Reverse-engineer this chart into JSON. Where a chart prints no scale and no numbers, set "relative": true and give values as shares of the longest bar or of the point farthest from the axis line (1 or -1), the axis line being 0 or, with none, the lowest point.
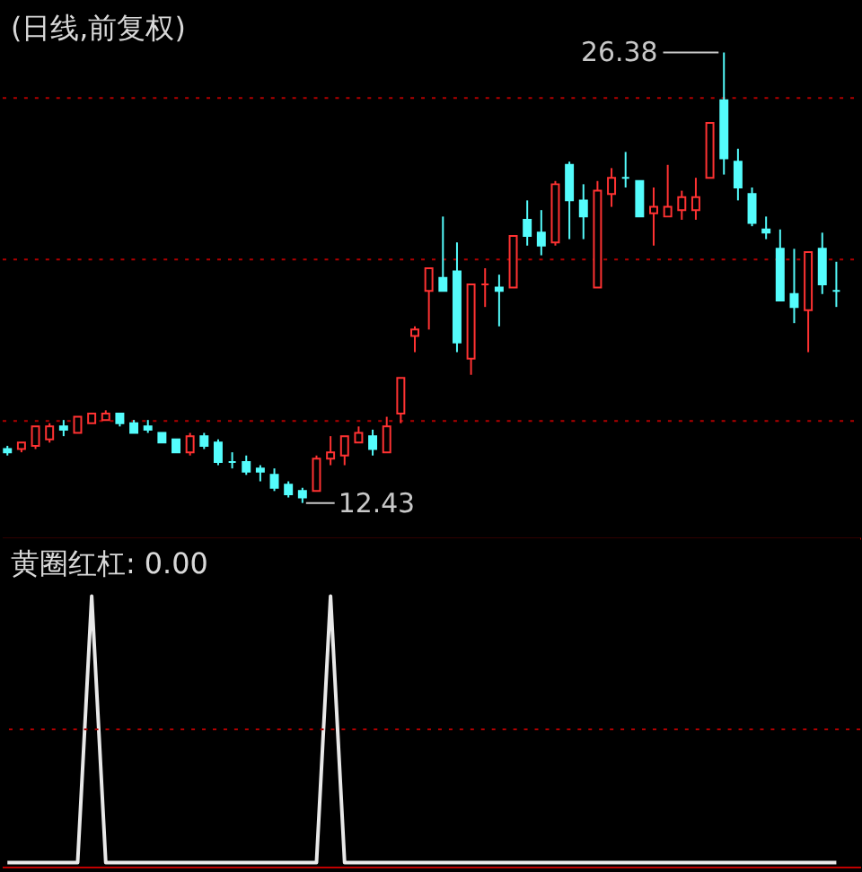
{
  "chart_data": [
    {
      "type": "candlestick",
      "title": "(日线,前复权)",
      "categories": [
        null,
        null,
        null,
        null,
        null,
        null,
        null,
        null,
        null,
        null,
        null,
        null,
        null,
        null,
        null,
        null,
        null,
        null,
        null,
        null,
        null,
        null,
        null,
        null,
        null,
        null,
        null,
        null,
        null,
        null,
        null,
        null,
        null,
        null,
        null,
        null,
        null,
        null,
        null,
        null,
        null,
        null,
        null,
        null,
        null,
        null,
        null,
        null,
        null,
        null,
        null,
        null,
        null,
        null,
        null,
        null,
        null,
        null,
        null,
        null
      ],
      "ohlc": [
        [
          14.1,
          14.2,
          13.9,
          14.0
        ],
        [
          14.1,
          14.3,
          14.0,
          14.3
        ],
        [
          14.2,
          14.8,
          14.1,
          14.8
        ],
        [
          14.4,
          14.9,
          14.3,
          14.8
        ],
        [
          14.8,
          15.0,
          14.5,
          14.7
        ],
        [
          14.6,
          15.1,
          14.6,
          15.1
        ],
        [
          14.9,
          15.2,
          14.9,
          15.2
        ],
        [
          15.0,
          15.3,
          15.0,
          15.2
        ],
        [
          15.2,
          15.2,
          14.8,
          14.9
        ],
        [
          14.9,
          15.0,
          14.6,
          14.6
        ],
        [
          14.8,
          15.0,
          14.6,
          14.7
        ],
        [
          14.6,
          14.6,
          14.3,
          14.3
        ],
        [
          14.4,
          14.4,
          14.0,
          14.0
        ],
        [
          14.0,
          14.6,
          13.9,
          14.5
        ],
        [
          14.5,
          14.6,
          14.1,
          14.2
        ],
        [
          14.3,
          14.4,
          13.6,
          13.7
        ],
        [
          13.7,
          14.0,
          13.5,
          13.7
        ],
        [
          13.7,
          13.9,
          13.3,
          13.4
        ],
        [
          13.5,
          13.6,
          13.1,
          13.4
        ],
        [
          13.3,
          13.5,
          12.8,
          12.9
        ],
        [
          13.0,
          13.1,
          12.6,
          12.7
        ],
        [
          12.8,
          12.9,
          12.43,
          12.6
        ],
        [
          12.8,
          13.9,
          12.8,
          13.8
        ],
        [
          13.8,
          14.5,
          13.6,
          14.0
        ],
        [
          13.9,
          14.5,
          13.6,
          14.5
        ],
        [
          14.3,
          14.8,
          14.3,
          14.6
        ],
        [
          14.5,
          14.7,
          13.9,
          14.1
        ],
        [
          14.0,
          15.1,
          14.0,
          14.8
        ],
        [
          15.2,
          16.3,
          14.9,
          16.3
        ],
        [
          17.6,
          17.9,
          17.1,
          17.8
        ],
        [
          19.0,
          19.7,
          17.8,
          19.7
        ],
        [
          19.4,
          21.3,
          19.0,
          19.0
        ],
        [
          19.6,
          20.5,
          17.1,
          17.4
        ],
        [
          16.9,
          19.2,
          16.4,
          19.2
        ],
        [
          19.2,
          19.7,
          18.5,
          19.2
        ],
        [
          19.1,
          19.5,
          17.9,
          19.0
        ],
        [
          19.1,
          20.7,
          19.1,
          20.7
        ],
        [
          21.2,
          21.8,
          20.4,
          20.7
        ],
        [
          20.8,
          21.5,
          20.1,
          20.4
        ],
        [
          20.5,
          22.4,
          20.4,
          22.3
        ],
        [
          22.9,
          23.0,
          20.6,
          21.8
        ],
        [
          21.8,
          22.3,
          20.6,
          21.3
        ],
        [
          19.1,
          22.4,
          19.1,
          22.1
        ],
        [
          22.0,
          22.8,
          21.6,
          22.5
        ],
        [
          22.5,
          23.3,
          22.2,
          22.5
        ],
        [
          22.4,
          22.4,
          21.3,
          21.3
        ],
        [
          21.4,
          22.2,
          20.4,
          21.6
        ],
        [
          21.3,
          22.9,
          21.3,
          21.6
        ],
        [
          21.5,
          22.1,
          21.2,
          21.9
        ],
        [
          21.5,
          22.5,
          21.2,
          21.9
        ],
        [
          22.5,
          24.2,
          22.5,
          24.2
        ],
        [
          24.9,
          26.38,
          22.6,
          23.1
        ],
        [
          23.0,
          23.4,
          21.8,
          22.2
        ],
        [
          22.0,
          22.2,
          21.0,
          21.1
        ],
        [
          20.9,
          21.3,
          20.6,
          20.8
        ],
        [
          20.3,
          20.9,
          18.7,
          18.7
        ],
        [
          18.9,
          20.3,
          18.0,
          18.5
        ],
        [
          18.4,
          20.2,
          17.1,
          20.2
        ],
        [
          20.3,
          20.8,
          18.9,
          19.2
        ],
        [
          19.0,
          19.9,
          18.5,
          19.0
        ]
      ],
      "colors": [
        "#54fcfc",
        "#ff3232",
        "#ff3232",
        "#ff3232",
        "#54fcfc",
        "#ff3232",
        "#ff3232",
        "#ff3232",
        "#54fcfc",
        "#54fcfc",
        "#54fcfc",
        "#54fcfc",
        "#54fcfc",
        "#ff3232",
        "#54fcfc",
        "#54fcfc",
        "#54fcfc",
        "#54fcfc",
        "#54fcfc",
        "#54fcfc",
        "#54fcfc",
        "#54fcfc",
        "#ff3232",
        "#ff3232",
        "#ff3232",
        "#ff3232",
        "#54fcfc",
        "#ff3232",
        "#ff3232",
        "#ff3232",
        "#ff3232",
        "#54fcfc",
        "#54fcfc",
        "#ff3232",
        "#ff3232",
        "#54fcfc",
        "#ff3232",
        "#54fcfc",
        "#54fcfc",
        "#ff3232",
        "#54fcfc",
        "#54fcfc",
        "#ff3232",
        "#ff3232",
        "#54fcfc",
        "#54fcfc",
        "#ff3232",
        "#ff3232",
        "#ff3232",
        "#ff3232",
        "#ff3232",
        "#54fcfc",
        "#54fcfc",
        "#54fcfc",
        "#54fcfc",
        "#54fcfc",
        "#54fcfc",
        "#ff3232",
        "#54fcfc",
        "#54fcfc"
      ],
      "yticks": [
        {
          "value": 15,
          "label": null
        },
        {
          "value": 20,
          "label": null
        },
        {
          "value": 25,
          "label": null
        }
      ],
      "grid": "y",
      "tick_labels": false,
      "annotations": [
        "26.38",
        "12.43"
      ]
    },
    {
      "type": "line",
      "title": "黄圈红杠: 0.00",
      "categories": [
        null,
        null,
        null,
        null,
        null,
        null,
        null,
        null,
        null,
        null,
        null,
        null,
        null,
        null,
        null,
        null,
        null,
        null,
        null,
        null,
        null,
        null,
        null,
        null,
        null,
        null,
        null,
        null,
        null,
        null,
        null,
        null,
        null,
        null,
        null,
        null,
        null,
        null,
        null,
        null,
        null,
        null,
        null,
        null,
        null,
        null,
        null,
        null,
        null,
        null,
        null,
        null,
        null,
        null,
        null,
        null,
        null,
        null,
        null,
        null
      ],
      "series": [
        {
          "color": "#e8e8e8",
          "values": [
            0,
            0,
            0,
            0,
            0,
            0,
            1,
            0,
            0,
            0,
            0,
            0,
            0,
            0,
            0,
            0,
            0,
            0,
            0,
            0,
            0,
            0,
            0,
            1,
            0,
            0,
            0,
            0,
            0,
            0,
            0,
            0,
            0,
            0,
            0,
            0,
            0,
            0,
            0,
            0,
            0,
            0,
            0,
            0,
            0,
            0,
            0,
            0,
            0,
            0,
            0,
            0,
            0,
            0,
            0,
            0,
            0,
            0,
            0,
            0
          ]
        }
      ],
      "relative": true,
      "tick_labels": false,
      "ref_lines": [
        {
          "axis": "y",
          "value": 0.5,
          "color": "#b00000",
          "line_style": "dotted"
        }
      ]
    }
  ]
}
